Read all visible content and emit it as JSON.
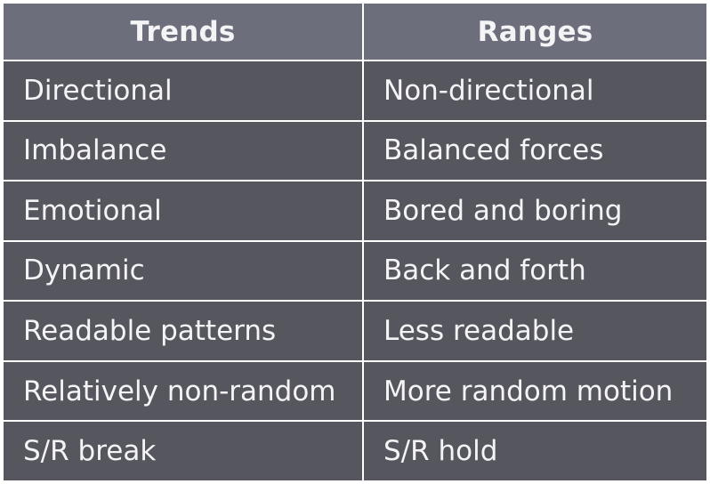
{
  "table": {
    "headers": [
      "Trends",
      "Ranges"
    ],
    "rows": [
      [
        "Directional",
        "Non-directional"
      ],
      [
        "Imbalance",
        "Balanced forces"
      ],
      [
        "Emotional",
        "Bored and boring"
      ],
      [
        "Dynamic",
        "Back and forth"
      ],
      [
        "Readable patterns",
        "Less readable"
      ],
      [
        "Relatively non-random",
        "More random motion"
      ],
      [
        "S/R break",
        "S/R hold"
      ]
    ],
    "colors": {
      "header_bg": "#6c6e7b",
      "cell_bg": "#56565f",
      "grid": "#ffffff",
      "text": "#f4f4f6"
    }
  }
}
